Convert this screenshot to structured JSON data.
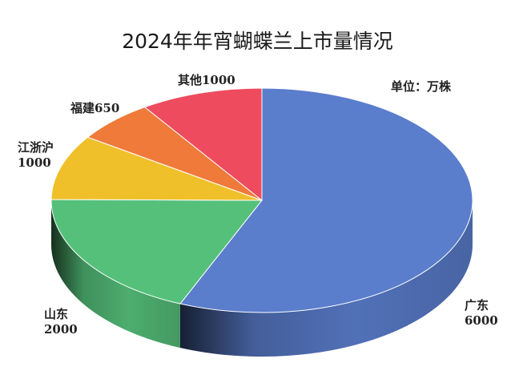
{
  "chart_data": {
    "type": "pie",
    "title": "2024年年宵蝴蝶兰上市量情况",
    "unit_note": "单位：万株",
    "three_d": true,
    "start": "12 o'clock, clockwise",
    "slices": [
      {
        "name": "广东",
        "value": 6000,
        "label": "广东\n6000",
        "color": "#5a7dcc"
      },
      {
        "name": "山东",
        "value": 2000,
        "label": "山东\n2000",
        "color": "#55c07a"
      },
      {
        "name": "江浙沪",
        "value": 1000,
        "label": "江浙沪\n1000",
        "color": "#f0c02a"
      },
      {
        "name": "福建",
        "value": 650,
        "label": "福建650",
        "color": "#f07a3a"
      },
      {
        "name": "其他",
        "value": 1000,
        "label": "其他1000",
        "color": "#ee4b5e"
      }
    ],
    "legend": "none"
  }
}
